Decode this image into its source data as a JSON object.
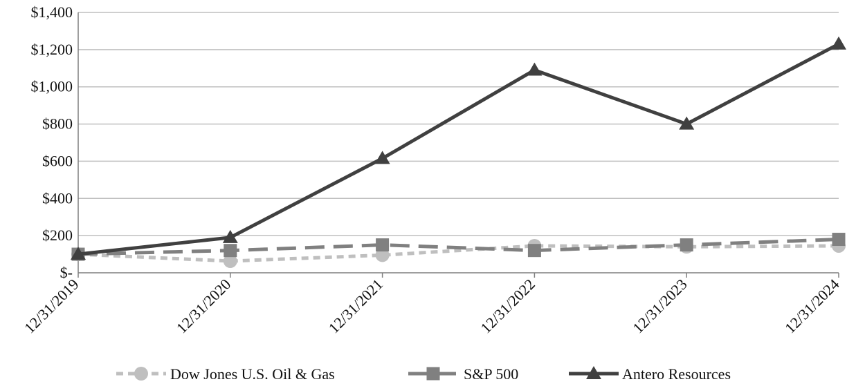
{
  "chart_data": {
    "type": "line",
    "categories": [
      "12/31/2019",
      "12/31/2020",
      "12/31/2021",
      "12/31/2022",
      "12/31/2023",
      "12/31/2024"
    ],
    "series": [
      {
        "name": "Dow Jones U.S. Oil & Gas",
        "values": [
          100,
          63,
          95,
          145,
          140,
          145
        ],
        "color": "#bfbfbf",
        "marker": "circle",
        "dash": "short-dash"
      },
      {
        "name": "S&P 500",
        "values": [
          100,
          120,
          150,
          120,
          150,
          180
        ],
        "color": "#808080",
        "marker": "square",
        "dash": "long-dash"
      },
      {
        "name": "Antero Resources",
        "values": [
          100,
          190,
          615,
          1090,
          800,
          1230
        ],
        "color": "#404040",
        "marker": "triangle",
        "dash": "solid"
      }
    ],
    "yticks": [
      0,
      200,
      400,
      600,
      800,
      1000,
      1200,
      1400
    ],
    "ytick_labels": [
      "$-",
      "$200",
      "$400",
      "$600",
      "$800",
      "$1,000",
      "$1,200",
      "$1,400"
    ],
    "ylim": [
      0,
      1400
    ],
    "grid": true,
    "legend_position": "bottom"
  }
}
